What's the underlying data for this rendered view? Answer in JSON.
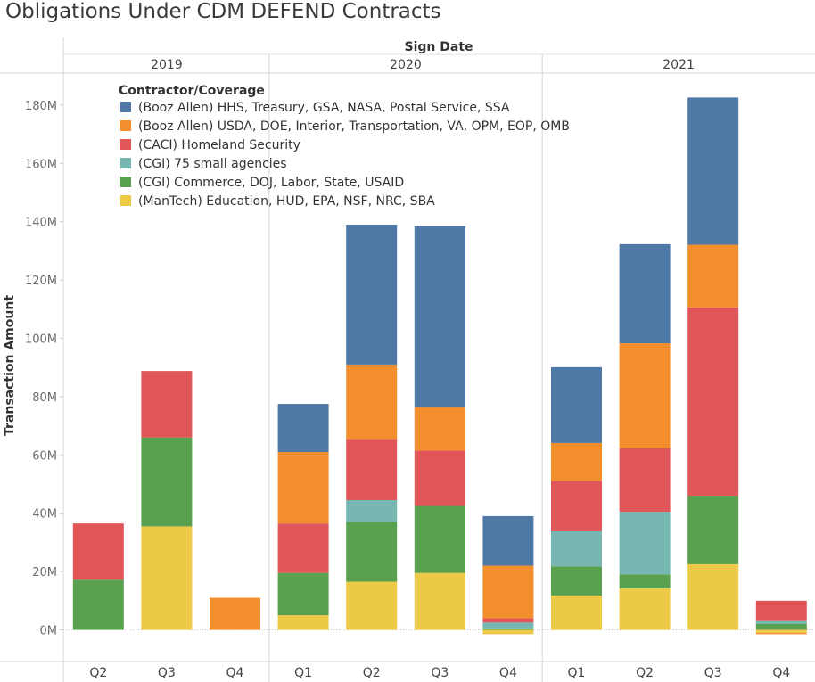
{
  "title": "Obligations Under CDM DEFEND Contracts",
  "chart_data": {
    "type": "bar",
    "stacked": true,
    "column_header": "Sign Date",
    "ylabel": "Transaction Amount",
    "ylim": [
      -10,
      190
    ],
    "yticks": [
      0,
      20,
      40,
      60,
      80,
      100,
      120,
      140,
      160,
      180
    ],
    "ytick_labels": [
      "0M",
      "20M",
      "40M",
      "60M",
      "80M",
      "100M",
      "120M",
      "140M",
      "160M",
      "180M"
    ],
    "grid": false,
    "legend_title": "Contractor/Coverage",
    "legend_position": "top-left",
    "years": [
      {
        "label": "2019",
        "quarters": [
          "Q2",
          "Q3",
          "Q4"
        ]
      },
      {
        "label": "2020",
        "quarters": [
          "Q1",
          "Q2",
          "Q3",
          "Q4"
        ]
      },
      {
        "label": "2021",
        "quarters": [
          "Q1",
          "Q2",
          "Q3",
          "Q4"
        ]
      }
    ],
    "categories": [
      "2019 Q2",
      "2019 Q3",
      "2019 Q4",
      "2020 Q1",
      "2020 Q2",
      "2020 Q3",
      "2020 Q4",
      "2021 Q1",
      "2021 Q2",
      "2021 Q3",
      "2021 Q4"
    ],
    "series": [
      {
        "name": "(ManTech) Education, HUD, EPA, NSF, NRC, SBA",
        "color": "#edc948",
        "values": [
          0,
          35.5,
          0,
          5,
          16.5,
          19.5,
          -1.5,
          11.8,
          14.2,
          22.5,
          -1
        ]
      },
      {
        "name": "(CGI) Commerce, DOJ, Labor, State, USAID",
        "color": "#59a14f",
        "values": [
          17.2,
          30.5,
          0,
          14.5,
          20.5,
          23,
          0.5,
          10,
          4.8,
          23.5,
          2
        ]
      },
      {
        "name": "(CGI) 75 small agencies",
        "color": "#76b7b2",
        "values": [
          0,
          0,
          0,
          0,
          7.5,
          0,
          2,
          12,
          21.5,
          0,
          1
        ]
      },
      {
        "name": "(CACI) Homeland Security",
        "color": "#e15759",
        "values": [
          19.3,
          22.8,
          0,
          17,
          21,
          19,
          1.5,
          17.3,
          21.8,
          64.6,
          7
        ]
      },
      {
        "name": "(Booz Allen) USDA, DOE, Interior, Transportation, VA, OPM, EOP, OMB",
        "color": "#f28e2b",
        "values": [
          0,
          0,
          11,
          24.5,
          25.5,
          15,
          18,
          13,
          36,
          21.5,
          -0.5
        ]
      },
      {
        "name": "(Booz Allen) HHS, Treasury, GSA, NASA, Postal Service, SSA",
        "color": "#4e79a7",
        "values": [
          0,
          0,
          0,
          16.5,
          48,
          62,
          17,
          26,
          34,
          50.5,
          0
        ]
      }
    ]
  }
}
